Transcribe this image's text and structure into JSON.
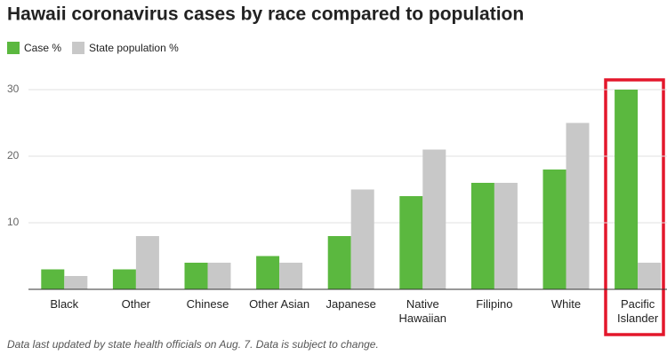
{
  "chart_data": {
    "type": "bar",
    "title": "Hawaii coronavirus cases by race compared to population",
    "categories": [
      "Black",
      "Other",
      "Chinese",
      "Other Asian",
      "Japanese",
      "Native Hawaiian",
      "Filipino",
      "White",
      "Pacific Islander"
    ],
    "series": [
      {
        "name": "Case %",
        "color": "#5bb83f",
        "values": [
          3,
          3,
          4,
          5,
          8,
          14,
          16,
          18,
          30
        ]
      },
      {
        "name": "State population %",
        "color": "#c8c8c8",
        "values": [
          2,
          8,
          4,
          4,
          15,
          21,
          16,
          25,
          4
        ]
      }
    ],
    "ylim": [
      0,
      30
    ],
    "yticks": [
      10,
      20,
      30
    ],
    "grid": true,
    "legend": "top-left",
    "footnote": "Data last updated by state health officials on Aug. 7. Data is subject to change."
  }
}
